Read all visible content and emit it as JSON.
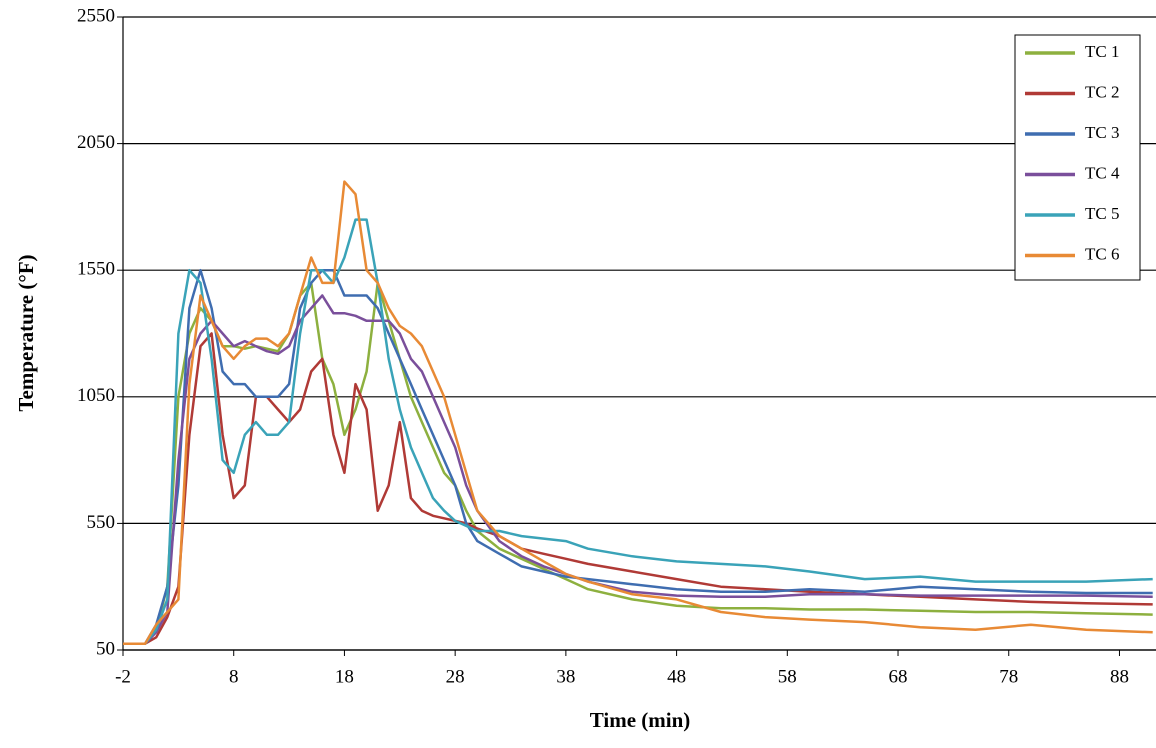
{
  "chart_data": {
    "type": "line",
    "x_label": "Time (min)",
    "y_label": "Temperature  (°F)",
    "x": [
      -2,
      0,
      1,
      2,
      3,
      4,
      5,
      6,
      7,
      8,
      9,
      10,
      11,
      12,
      13,
      14,
      15,
      16,
      17,
      18,
      19,
      20,
      21,
      22,
      23,
      24,
      25,
      26,
      27,
      28,
      29,
      30,
      32,
      34,
      36,
      38,
      40,
      44,
      48,
      52,
      56,
      60,
      65,
      70,
      75,
      80,
      85,
      91
    ],
    "series": [
      {
        "name": "TC 1",
        "color": "#8db03f",
        "values": [
          75,
          75,
          130,
          300,
          1050,
          1300,
          1400,
          1350,
          1250,
          1250,
          1240,
          1250,
          1240,
          1230,
          1300,
          1450,
          1500,
          1200,
          1100,
          900,
          1000,
          1150,
          1500,
          1350,
          1200,
          1050,
          950,
          850,
          750,
          700,
          600,
          520,
          450,
          410,
          370,
          330,
          290,
          250,
          225,
          215,
          215,
          210,
          210,
          205,
          200,
          200,
          195,
          190
        ]
      },
      {
        "name": "TC 2",
        "color": "#b03a36",
        "values": [
          75,
          75,
          100,
          180,
          300,
          900,
          1250,
          1300,
          900,
          650,
          700,
          1050,
          1050,
          1000,
          950,
          1000,
          1150,
          1200,
          900,
          750,
          1100,
          1000,
          600,
          700,
          950,
          650,
          600,
          580,
          570,
          560,
          550,
          530,
          500,
          450,
          430,
          410,
          390,
          360,
          330,
          300,
          290,
          280,
          270,
          260,
          250,
          240,
          235,
          230
        ]
      },
      {
        "name": "TC 3",
        "color": "#3f6db0",
        "values": [
          75,
          75,
          150,
          300,
          700,
          1400,
          1550,
          1400,
          1150,
          1100,
          1100,
          1050,
          1050,
          1050,
          1100,
          1400,
          1500,
          1550,
          1550,
          1450,
          1450,
          1450,
          1400,
          1300,
          1200,
          1100,
          1000,
          900,
          800,
          700,
          550,
          480,
          430,
          380,
          360,
          340,
          330,
          310,
          290,
          280,
          280,
          290,
          280,
          300,
          290,
          280,
          275,
          275
        ]
      },
      {
        "name": "TC 4",
        "color": "#7a4f9b",
        "values": [
          75,
          75,
          120,
          200,
          800,
          1200,
          1300,
          1350,
          1300,
          1250,
          1270,
          1250,
          1230,
          1220,
          1250,
          1350,
          1400,
          1450,
          1380,
          1380,
          1370,
          1350,
          1350,
          1350,
          1300,
          1200,
          1150,
          1050,
          950,
          850,
          700,
          600,
          480,
          420,
          380,
          350,
          320,
          280,
          265,
          260,
          260,
          270,
          270,
          265,
          265,
          265,
          265,
          260
        ]
      },
      {
        "name": "TC 5",
        "color": "#3aa3b8",
        "values": [
          75,
          75,
          130,
          250,
          1300,
          1550,
          1500,
          1200,
          800,
          750,
          900,
          950,
          900,
          900,
          950,
          1300,
          1550,
          1550,
          1500,
          1600,
          1750,
          1750,
          1500,
          1200,
          1000,
          850,
          750,
          650,
          600,
          560,
          540,
          520,
          520,
          500,
          490,
          480,
          450,
          420,
          400,
          390,
          380,
          360,
          330,
          340,
          320,
          320,
          320,
          330
        ]
      },
      {
        "name": "TC 6",
        "color": "#e88a35",
        "values": [
          75,
          75,
          150,
          200,
          250,
          1100,
          1450,
          1350,
          1250,
          1200,
          1250,
          1280,
          1280,
          1250,
          1300,
          1450,
          1600,
          1500,
          1500,
          1900,
          1850,
          1550,
          1500,
          1400,
          1330,
          1300,
          1250,
          1150,
          1050,
          900,
          750,
          600,
          500,
          450,
          400,
          350,
          320,
          270,
          250,
          200,
          180,
          170,
          160,
          140,
          130,
          150,
          130,
          120
        ]
      }
    ],
    "xlim": [
      -2,
      91.3
    ],
    "xticks": [
      -2,
      8,
      18,
      28,
      38,
      48,
      58,
      68,
      78,
      88
    ],
    "ylim": [
      50,
      2550
    ],
    "yticks": [
      50,
      550,
      1050,
      1550,
      2050,
      2550
    ],
    "grid": true,
    "legend": "upper right"
  }
}
